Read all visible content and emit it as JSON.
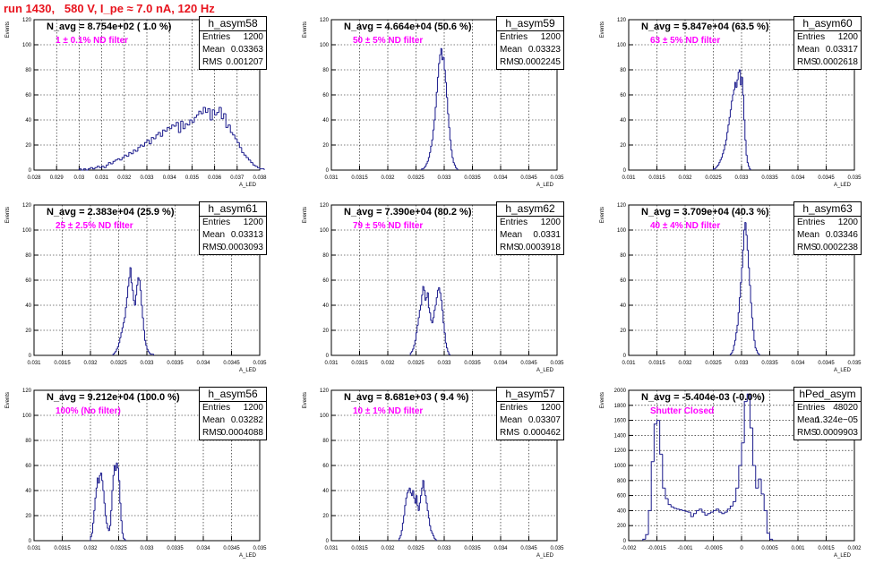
{
  "title": "run 1430,   580 V, I_pe ≈ 7.0 nA, 120 Hz",
  "stat_labels": {
    "entries": "Entries",
    "mean": "Mean",
    "rms": "RMS"
  },
  "chart_data": [
    {
      "type": "bar",
      "name": "h_asym58",
      "navg": "N_avg = 8.754e+02 ( 1.0 %)",
      "filter": "1 ± 0.1% ND filter",
      "entries": "1200",
      "mean": "0.03363",
      "rms": "0.001207",
      "ylabel": "Events",
      "xlabel": "A_LED",
      "xlim": [
        0.028,
        0.038
      ],
      "ylim": [
        0,
        120
      ],
      "yticks": [
        0,
        20,
        40,
        60,
        80,
        100,
        120
      ],
      "yticklabels": [
        "0",
        "20",
        "40",
        "60",
        "80",
        "100",
        "120"
      ],
      "xticks": [
        0.028,
        0.029,
        0.03,
        0.031,
        0.032,
        0.033,
        0.034,
        0.035,
        0.036,
        0.037,
        0.038
      ],
      "xticklabels": [
        "0.028",
        "0.029",
        "0.03",
        "0.031",
        "0.032",
        "0.033",
        "0.034",
        "0.035",
        "0.036",
        "0.037",
        "0.038"
      ],
      "bin_low": 0.03,
      "bin_width": 0.0001,
      "values": [
        1,
        0,
        1,
        0,
        1,
        2,
        1,
        2,
        3,
        2,
        3,
        2,
        4,
        6,
        5,
        7,
        8,
        9,
        8,
        10,
        12,
        11,
        14,
        13,
        16,
        15,
        18,
        20,
        19,
        22,
        24,
        21,
        26,
        25,
        28,
        30,
        27,
        32,
        31,
        34,
        33,
        36,
        35,
        38,
        30,
        39,
        33,
        37,
        36,
        40,
        38,
        42,
        44,
        47,
        45,
        50,
        46,
        49,
        40,
        48,
        44,
        46,
        50,
        41,
        45,
        34,
        36,
        30,
        28,
        25,
        22,
        18,
        14,
        12,
        10,
        8,
        6,
        4,
        3,
        2,
        1,
        1
      ]
    },
    {
      "type": "bar",
      "name": "h_asym59",
      "navg": "N_avg = 4.664e+04 (50.6 %)",
      "filter": "50 ± 5% ND filter",
      "entries": "1200",
      "mean": "0.03323",
      "rms": "0.0002245",
      "ylabel": "Events",
      "xlabel": "A_LED",
      "xlim": [
        0.031,
        0.035
      ],
      "ylim": [
        0,
        120
      ],
      "yticks": [
        0,
        20,
        40,
        60,
        80,
        100,
        120
      ],
      "yticklabels": [
        "0",
        "20",
        "40",
        "60",
        "80",
        "100",
        "120"
      ],
      "xticks": [
        0.031,
        0.0315,
        0.032,
        0.0325,
        0.033,
        0.0335,
        0.034,
        0.0345,
        0.035
      ],
      "xticklabels": [
        "0.031",
        "0.0315",
        "0.032",
        "0.0325",
        "0.033",
        "0.0335",
        "0.034",
        "0.0345",
        "0.035"
      ],
      "bin_low": 0.0326,
      "bin_width": 2e-05,
      "values": [
        1,
        1,
        2,
        3,
        5,
        7,
        10,
        14,
        19,
        24,
        32,
        40,
        50,
        62,
        74,
        85,
        92,
        97,
        88,
        90,
        80,
        70,
        58,
        45,
        34,
        24,
        16,
        10,
        6,
        4,
        2,
        1
      ]
    },
    {
      "type": "bar",
      "name": "h_asym60",
      "navg": "N_avg = 5.847e+04 (63.5 %)",
      "filter": "63 ± 5% ND filter",
      "entries": "1200",
      "mean": "0.03317",
      "rms": "0.0002618",
      "ylabel": "Events",
      "xlabel": "A_LED",
      "xlim": [
        0.031,
        0.035
      ],
      "ylim": [
        0,
        120
      ],
      "yticks": [
        0,
        20,
        40,
        60,
        80,
        100,
        120
      ],
      "yticklabels": [
        "0",
        "20",
        "40",
        "60",
        "80",
        "100",
        "120"
      ],
      "xticks": [
        0.031,
        0.0315,
        0.032,
        0.0325,
        0.033,
        0.0335,
        0.034,
        0.0345,
        0.035
      ],
      "xticklabels": [
        "0.031",
        "0.0315",
        "0.032",
        "0.0325",
        "0.033",
        "0.0335",
        "0.034",
        "0.0345",
        "0.035"
      ],
      "bin_low": 0.0325,
      "bin_width": 2e-05,
      "values": [
        1,
        1,
        2,
        3,
        4,
        6,
        8,
        10,
        13,
        16,
        20,
        24,
        30,
        36,
        42,
        48,
        55,
        60,
        64,
        70,
        66,
        72,
        78,
        80,
        68,
        74,
        60,
        40,
        24,
        12,
        6,
        3,
        1
      ]
    },
    {
      "type": "bar",
      "name": "h_asym61",
      "navg": "N_avg = 2.383e+04 (25.9 %)",
      "filter": "25 ± 2.5% ND filter",
      "entries": "1200",
      "mean": "0.03313",
      "rms": "0.0003093",
      "ylabel": "Events",
      "xlabel": "A_LED",
      "xlim": [
        0.031,
        0.035
      ],
      "ylim": [
        0,
        120
      ],
      "yticks": [
        0,
        20,
        40,
        60,
        80,
        100,
        120
      ],
      "yticklabels": [
        "0",
        "20",
        "40",
        "60",
        "80",
        "100",
        "120"
      ],
      "xticks": [
        0.031,
        0.0315,
        0.032,
        0.0325,
        0.033,
        0.0335,
        0.034,
        0.0345,
        0.035
      ],
      "xticklabels": [
        "0.031",
        "0.0315",
        "0.032",
        "0.0325",
        "0.033",
        "0.0335",
        "0.034",
        "0.0345",
        "0.035"
      ],
      "bin_low": 0.0324,
      "bin_width": 2e-05,
      "values": [
        1,
        2,
        3,
        5,
        7,
        10,
        14,
        18,
        22,
        26,
        30,
        38,
        46,
        55,
        62,
        70,
        58,
        52,
        44,
        40,
        48,
        56,
        62,
        60,
        52,
        40,
        30,
        20,
        12,
        8,
        5,
        3,
        2,
        1,
        1,
        1
      ]
    },
    {
      "type": "bar",
      "name": "h_asym62",
      "navg": "N_avg = 7.390e+04 (80.2 %)",
      "filter": "79 ± 5% ND filter",
      "entries": "1200",
      "mean": "0.0331",
      "rms": "0.0003918",
      "ylabel": "Events",
      "xlabel": "A_LED",
      "xlim": [
        0.031,
        0.035
      ],
      "ylim": [
        0,
        120
      ],
      "yticks": [
        0,
        20,
        40,
        60,
        80,
        100,
        120
      ],
      "yticklabels": [
        "0",
        "20",
        "40",
        "60",
        "80",
        "100",
        "120"
      ],
      "xticks": [
        0.031,
        0.0315,
        0.032,
        0.0325,
        0.033,
        0.0335,
        0.034,
        0.0345,
        0.035
      ],
      "xticklabels": [
        "0.031",
        "0.0315",
        "0.032",
        "0.0325",
        "0.033",
        "0.0335",
        "0.034",
        "0.0345",
        "0.035"
      ],
      "bin_low": 0.0324,
      "bin_width": 2e-05,
      "values": [
        2,
        3,
        5,
        8,
        12,
        18,
        24,
        30,
        36,
        40,
        48,
        55,
        52,
        44,
        46,
        50,
        38,
        34,
        28,
        26,
        30,
        36,
        40,
        46,
        52,
        54,
        50,
        44,
        36,
        26,
        18,
        10,
        6,
        3,
        1
      ]
    },
    {
      "type": "bar",
      "name": "h_asym63",
      "navg": "N_avg = 3.709e+04 (40.3 %)",
      "filter": "40 ± 4% ND filter",
      "entries": "1200",
      "mean": "0.03346",
      "rms": "0.0002238",
      "ylabel": "Events",
      "xlabel": "A_LED",
      "xlim": [
        0.031,
        0.035
      ],
      "ylim": [
        0,
        120
      ],
      "yticks": [
        0,
        20,
        40,
        60,
        80,
        100,
        120
      ],
      "yticklabels": [
        "0",
        "20",
        "40",
        "60",
        "80",
        "100",
        "120"
      ],
      "xticks": [
        0.031,
        0.0315,
        0.032,
        0.0325,
        0.033,
        0.0335,
        0.034,
        0.0345,
        0.035
      ],
      "xticklabels": [
        "0.031",
        "0.0315",
        "0.032",
        "0.0325",
        "0.033",
        "0.0335",
        "0.034",
        "0.0345",
        "0.035"
      ],
      "bin_low": 0.0328,
      "bin_width": 2e-05,
      "values": [
        1,
        2,
        4,
        8,
        12,
        18,
        24,
        34,
        46,
        58,
        70,
        84,
        100,
        106,
        96,
        84,
        70,
        56,
        42,
        30,
        20,
        12,
        6,
        4,
        2,
        1
      ]
    },
    {
      "type": "bar",
      "name": "h_asym56",
      "navg": "N_avg = 9.212e+04 (100.0 %)",
      "filter": "100% (No filter)",
      "entries": "1200",
      "mean": "0.03282",
      "rms": "0.0004088",
      "ylabel": "Events",
      "xlabel": "A_LED",
      "xlim": [
        0.031,
        0.035
      ],
      "ylim": [
        0,
        120
      ],
      "yticks": [
        0,
        20,
        40,
        60,
        80,
        100,
        120
      ],
      "yticklabels": [
        "0",
        "20",
        "40",
        "60",
        "80",
        "100",
        "120"
      ],
      "xticks": [
        0.031,
        0.0315,
        0.032,
        0.0325,
        0.033,
        0.0335,
        0.034,
        0.0345,
        0.035
      ],
      "xticklabels": [
        "0.031",
        "0.0315",
        "0.032",
        "0.0325",
        "0.033",
        "0.0335",
        "0.034",
        "0.0345",
        "0.035"
      ],
      "bin_low": 0.032,
      "bin_width": 2e-05,
      "values": [
        3,
        6,
        14,
        24,
        34,
        42,
        50,
        46,
        52,
        54,
        48,
        40,
        30,
        20,
        14,
        10,
        8,
        12,
        24,
        40,
        52,
        60,
        56,
        62,
        58,
        48,
        30,
        16,
        6,
        2,
        1
      ]
    },
    {
      "type": "bar",
      "name": "h_asym57",
      "navg": "N_avg = 8.681e+03 ( 9.4 %)",
      "filter": "10 ± 1% ND filter",
      "entries": "1200",
      "mean": "0.03307",
      "rms": "0.000462",
      "ylabel": "Events",
      "xlabel": "A_LED",
      "xlim": [
        0.031,
        0.035
      ],
      "ylim": [
        0,
        120
      ],
      "yticks": [
        0,
        20,
        40,
        60,
        80,
        100,
        120
      ],
      "yticklabels": [
        "0",
        "20",
        "40",
        "60",
        "80",
        "100",
        "120"
      ],
      "xticks": [
        0.031,
        0.0315,
        0.032,
        0.0325,
        0.033,
        0.0335,
        0.034,
        0.0345,
        0.035
      ],
      "xticklabels": [
        "0.031",
        "0.0315",
        "0.032",
        "0.0325",
        "0.033",
        "0.0335",
        "0.034",
        "0.0345",
        "0.035"
      ],
      "bin_low": 0.0322,
      "bin_width": 2e-05,
      "values": [
        2,
        4,
        8,
        14,
        20,
        28,
        34,
        38,
        40,
        42,
        38,
        36,
        40,
        34,
        30,
        36,
        28,
        24,
        30,
        36,
        42,
        48,
        40,
        36,
        30,
        24,
        18,
        12,
        8,
        6,
        4,
        2,
        1
      ]
    },
    {
      "type": "bar",
      "name": "hPed_asym",
      "navg": "N_avg = -5.404e-03 (-0.0%)",
      "filter": "Shutter Closed",
      "entries": "48020",
      "mean": "1.324e−05",
      "rms": "0.0009903",
      "ylabel": "Events",
      "xlabel": "A_LED",
      "xlim": [
        -0.002,
        0.002
      ],
      "ylim": [
        0,
        2000
      ],
      "yticks": [
        0,
        200,
        400,
        600,
        800,
        1000,
        1200,
        1400,
        1600,
        1800,
        2000
      ],
      "yticklabels": [
        "0",
        "200",
        "400",
        "600",
        "800",
        "1000",
        "1200",
        "1400",
        "1600",
        "1800",
        "2000"
      ],
      "xticks": [
        -0.002,
        -0.0015,
        -0.001,
        -0.0005,
        0,
        0.0005,
        0.001,
        0.0015,
        0.002
      ],
      "xticklabels": [
        "-0.002",
        "-0.0015",
        "-0.001",
        "-0.0005",
        "0",
        "0.0005",
        "0.001",
        "0.0015",
        "0.002"
      ],
      "bin_low": -0.00175,
      "bin_width": 5e-05,
      "values": [
        20,
        80,
        400,
        1050,
        1550,
        1600,
        1150,
        700,
        560,
        480,
        450,
        430,
        420,
        410,
        400,
        390,
        380,
        320,
        360,
        400,
        420,
        380,
        340,
        360,
        380,
        400,
        420,
        380,
        360,
        380,
        420,
        460,
        520,
        700,
        1000,
        1300,
        1850,
        1950,
        1500,
        1000,
        700,
        820,
        620,
        400,
        100,
        20
      ]
    }
  ]
}
